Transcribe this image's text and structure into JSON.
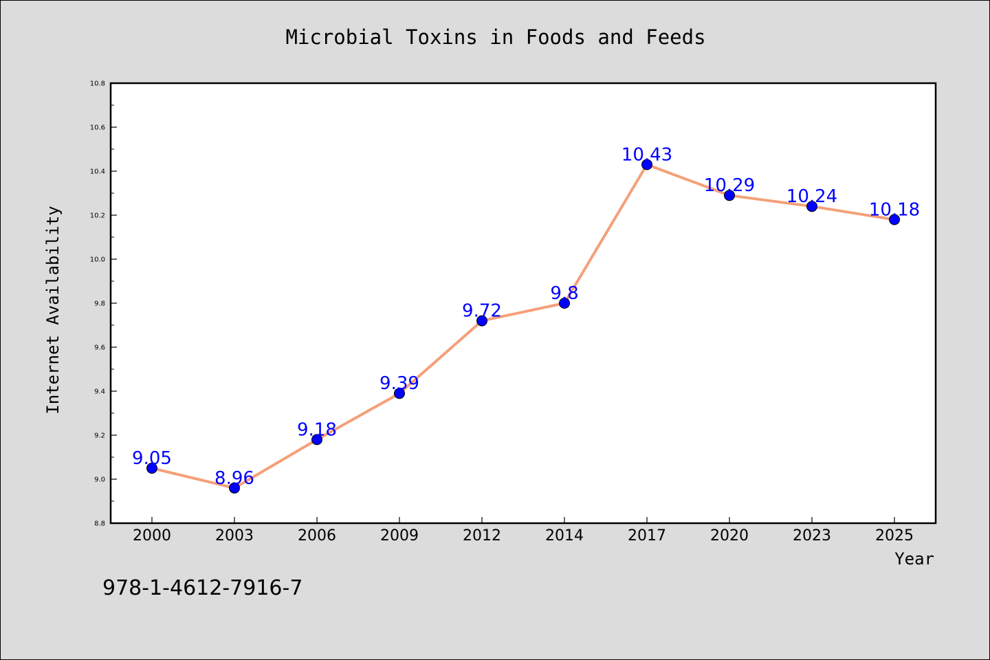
{
  "chart_data": {
    "type": "line",
    "title": "Microbial Toxins in Foods and Feeds",
    "xlabel": "Year",
    "ylabel": "Internet Availability",
    "categories": [
      "2000",
      "2003",
      "2006",
      "2009",
      "2012",
      "2014",
      "2017",
      "2020",
      "2023",
      "2025"
    ],
    "values": [
      9.05,
      8.96,
      9.18,
      9.39,
      9.72,
      9.8,
      10.43,
      10.29,
      10.24,
      10.18
    ],
    "data_labels": [
      "9.05",
      "8.96",
      "9.18",
      "9.39",
      "9.72",
      "9.8",
      "10.43",
      "10.29",
      "10.24",
      "10.18"
    ],
    "ylim": [
      8.8,
      10.8
    ],
    "yticks": [
      "8.8",
      "9.0",
      "9.2",
      "9.4",
      "9.6",
      "9.8",
      "10.0",
      "10.2",
      "10.4",
      "10.6",
      "10.8"
    ],
    "grid": false,
    "line_color": "#f4a07a",
    "marker_color": "#0000ff",
    "label_color": "#0000ff"
  },
  "footer": {
    "isbn": "978-1-4612-7916-7"
  }
}
